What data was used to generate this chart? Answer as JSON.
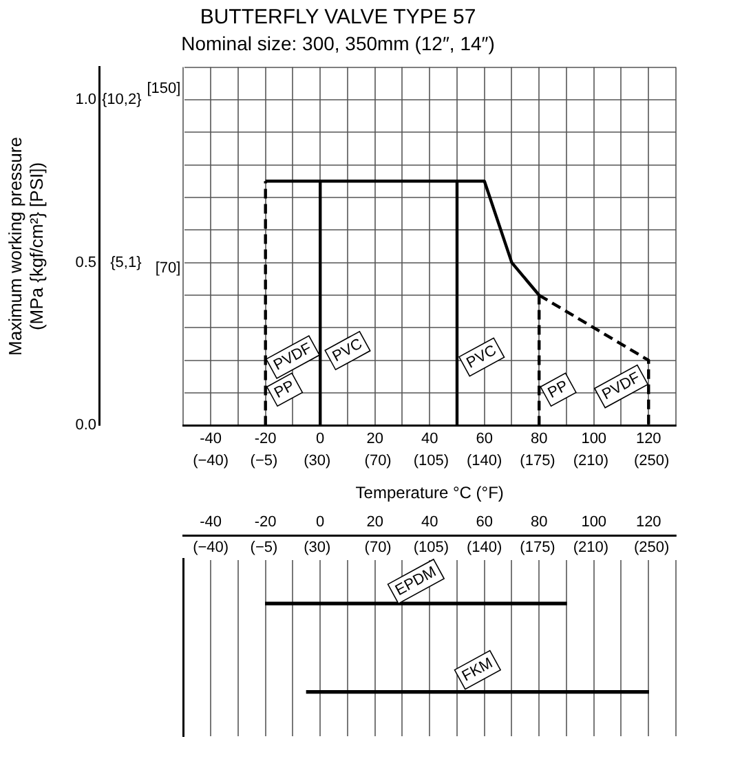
{
  "chart_data": [
    {
      "type": "line",
      "title": "BUTTERFLY VALVE TYPE 57",
      "subtitle": "Nominal size: 300, 350mm (12″, 14″)",
      "xlabel": "Temperature °C (°F)",
      "ylabel": "Maximum working pressure\n(MPa {kgf/cm²} [PSI])",
      "marker": "none",
      "grid": true,
      "xlim": [
        -50,
        130
      ],
      "xticks": [
        {
          "value": -50,
          "label": null
        },
        -40,
        {
          "value": -30,
          "label": null
        },
        -20,
        {
          "value": -10,
          "label": null
        },
        0,
        {
          "value": 10,
          "label": null
        },
        20,
        {
          "value": 30,
          "label": null
        },
        40,
        {
          "value": 50,
          "label": null
        },
        60,
        {
          "value": 70,
          "label": null
        },
        80,
        {
          "value": 90,
          "label": null
        },
        100,
        {
          "value": 110,
          "label": null
        },
        120,
        {
          "value": 130,
          "label": null
        }
      ],
      "x2lim": [
        -58,
        266
      ],
      "x2ticks": [
        {
          "value": -40,
          "label": "(−40)"
        },
        {
          "value": -5,
          "label": "(−5)"
        },
        {
          "value": 30,
          "label": "(30)"
        },
        {
          "value": 70,
          "label": "(70)"
        },
        {
          "value": 105,
          "label": "(105)"
        },
        {
          "value": 140,
          "label": "(140)"
        },
        {
          "value": 175,
          "label": "(175)"
        },
        {
          "value": 210,
          "label": "(210)"
        },
        {
          "value": 250,
          "label": "(250)"
        }
      ],
      "ylim": [
        0,
        1.1
      ],
      "yticks": [
        {
          "value": 0,
          "label": "0.0"
        },
        {
          "value": 0.1,
          "label": null
        },
        {
          "value": 0.2,
          "label": null
        },
        {
          "value": 0.3,
          "label": null
        },
        {
          "value": 0.4,
          "label": null
        },
        0.5,
        {
          "value": 0.6,
          "label": null
        },
        {
          "value": 0.7,
          "label": null
        },
        {
          "value": 0.8,
          "label": null
        },
        {
          "value": 0.9,
          "label": null
        },
        {
          "value": 1.0,
          "label": "1.0"
        },
        {
          "value": 1.1,
          "label": null
        }
      ],
      "y2lim": [
        0,
        11.22
      ],
      "y2ticks": [
        {
          "value": 5.1,
          "label": "{5,1}"
        },
        {
          "value": 10.2,
          "label": "{10,2}"
        }
      ],
      "y3lim": [
        0,
        159.5
      ],
      "y3ticks": [
        {
          "value": 70,
          "label": "[70]"
        },
        {
          "value": 150,
          "label": "[150]"
        }
      ],
      "series": [
        {
          "color": "#000000",
          "line_style": "solid",
          "x": [
            -20,
            60,
            70,
            80
          ],
          "values": [
            0.75,
            0.75,
            0.5,
            0.4
          ]
        },
        {
          "color": "#000000",
          "line_style": "solid",
          "x": [
            0,
            0
          ],
          "values": [
            0,
            0.75
          ]
        },
        {
          "color": "#000000",
          "line_style": "solid",
          "x": [
            50,
            50
          ],
          "values": [
            0,
            0.75
          ]
        },
        {
          "color": "#000000",
          "line_style": "dashed",
          "x": [
            -20,
            -20
          ],
          "values": [
            0,
            0.75
          ]
        },
        {
          "color": "#000000",
          "line_style": "dashed",
          "x": [
            80,
            80
          ],
          "values": [
            0,
            0.4
          ]
        },
        {
          "color": "#000000",
          "line_style": "dashed",
          "x": [
            80,
            120,
            120
          ],
          "values": [
            0.4,
            0.2,
            0
          ]
        }
      ],
      "annotations": [
        {
          "text": "PVDF",
          "x": -10,
          "y": 0.21
        },
        {
          "text": "PP",
          "x": -13,
          "y": 0.11
        },
        {
          "text": "PVC",
          "x": 10,
          "y": 0.23
        },
        {
          "text": "PVC",
          "x": 59,
          "y": 0.21
        },
        {
          "text": "PP",
          "x": 87,
          "y": 0.11
        },
        {
          "text": "PVDF",
          "x": 110,
          "y": 0.12
        }
      ]
    },
    {
      "type": "bar",
      "orientation": "horizontal",
      "categories": [
        "EPDM",
        "FKM"
      ],
      "base": [
        -20,
        -5
      ],
      "values": [
        110,
        125
      ],
      "color": "#000000",
      "grid": "x",
      "tick_labels": "x",
      "xlim": [
        -50,
        130
      ],
      "xticks": [
        {
          "value": -50,
          "label": null
        },
        -40,
        {
          "value": -30,
          "label": null
        },
        -20,
        {
          "value": -10,
          "label": null
        },
        0,
        {
          "value": 10,
          "label": null
        },
        20,
        {
          "value": 30,
          "label": null
        },
        40,
        {
          "value": 50,
          "label": null
        },
        60,
        {
          "value": 70,
          "label": null
        },
        80,
        {
          "value": 90,
          "label": null
        },
        100,
        {
          "value": 110,
          "label": null
        },
        120,
        {
          "value": 130,
          "label": null
        }
      ],
      "x2lim": [
        -58,
        266
      ],
      "x2ticks": [
        {
          "value": -40,
          "label": "(−40)"
        },
        {
          "value": -5,
          "label": "(−5)"
        },
        {
          "value": 30,
          "label": "(30)"
        },
        {
          "value": 70,
          "label": "(70)"
        },
        {
          "value": 105,
          "label": "(105)"
        },
        {
          "value": 140,
          "label": "(140)"
        },
        {
          "value": 175,
          "label": "(175)"
        },
        {
          "value": 210,
          "label": "(210)"
        },
        {
          "value": 250,
          "label": "(250)"
        }
      ]
    }
  ]
}
